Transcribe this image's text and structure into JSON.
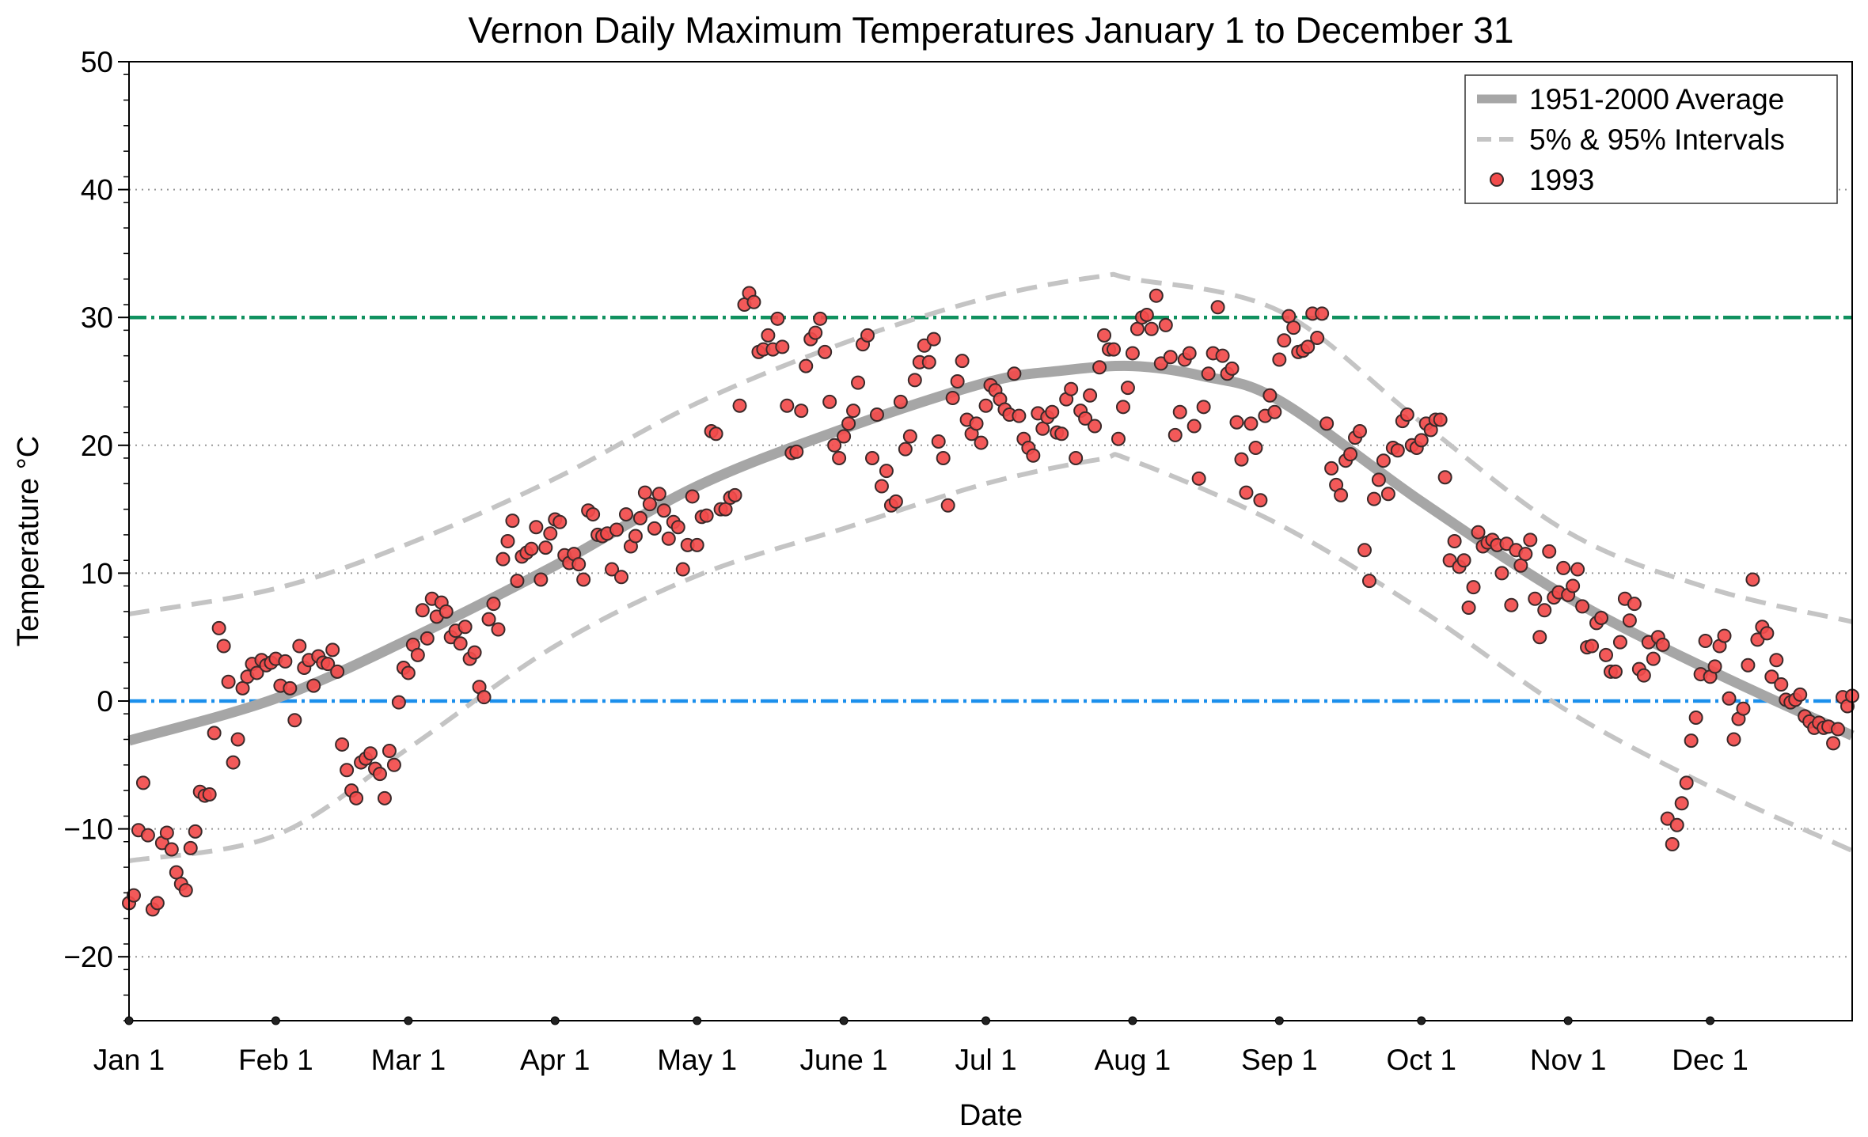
{
  "chart_data": {
    "type": "scatter",
    "title": "Vernon Daily Maximum Temperatures January 1 to December 31",
    "xlabel": "Date",
    "ylabel": "Temperature °C",
    "ylim": [
      -25,
      50
    ],
    "xlim_days": [
      0,
      364
    ],
    "yticks": [
      -20,
      -10,
      0,
      10,
      20,
      30,
      40,
      50
    ],
    "yticklabels": [
      "−20",
      "−10",
      "0",
      "10",
      "20",
      "30",
      "40",
      "50"
    ],
    "xticks": [
      {
        "day": 0,
        "label": "Jan 1"
      },
      {
        "day": 31,
        "label": "Feb 1"
      },
      {
        "day": 59,
        "label": "Mar 1"
      },
      {
        "day": 90,
        "label": "Apr 1"
      },
      {
        "day": 120,
        "label": "May 1"
      },
      {
        "day": 151,
        "label": "June 1"
      },
      {
        "day": 181,
        "label": "Jul 1"
      },
      {
        "day": 212,
        "label": "Aug 1"
      },
      {
        "day": 243,
        "label": "Sep 1"
      },
      {
        "day": 273,
        "label": "Oct 1"
      },
      {
        "day": 304,
        "label": "Nov 1"
      },
      {
        "day": 334,
        "label": "Dec 1"
      }
    ],
    "grid": "horizontal dotted",
    "legend_position": "top-right",
    "legend": [
      "1951-2000 Average",
      "5% & 95% Intervals",
      "1993"
    ],
    "reference_lines": [
      {
        "value": 30,
        "color": "#10915f"
      },
      {
        "value": 0,
        "color": "#1b8fec"
      }
    ],
    "colors": {
      "average": "#a6a6a6",
      "intervals": "#c4c4c4",
      "points": "#f24b4b",
      "point_edge": "#3a2a2a"
    },
    "average": {
      "days": [
        0,
        31,
        59,
        90,
        120,
        151,
        181,
        196,
        212,
        227,
        243,
        273,
        304,
        334,
        364
      ],
      "values": [
        -3.1,
        0.2,
        4.8,
        10.6,
        16.8,
        21.3,
        24.9,
        25.8,
        26.2,
        25.4,
        23.5,
        15.6,
        8.1,
        2.4,
        -2.7
      ]
    },
    "p95": {
      "days": [
        0,
        31,
        59,
        90,
        120,
        151,
        181,
        205,
        212,
        243,
        273,
        304,
        334,
        364
      ],
      "values": [
        6.8,
        8.8,
        12.3,
        17.4,
        23.3,
        28.0,
        31.5,
        33.2,
        33.0,
        30.5,
        21.8,
        13.2,
        8.8,
        6.2
      ]
    },
    "p5": {
      "days": [
        0,
        31,
        59,
        90,
        120,
        151,
        181,
        205,
        212,
        243,
        273,
        304,
        334,
        364
      ],
      "values": [
        -12.5,
        -10.5,
        -3.7,
        4.3,
        9.8,
        13.5,
        17.0,
        18.9,
        18.8,
        13.8,
        7.1,
        -0.8,
        -6.7,
        -11.7
      ]
    },
    "series_1993": [
      -15.8,
      -15.2,
      -10.1,
      -6.4,
      -10.5,
      -16.3,
      -15.8,
      -11.1,
      -10.3,
      -11.6,
      -13.4,
      -14.3,
      -14.8,
      -11.5,
      -10.2,
      -7.1,
      -7.4,
      -7.3,
      -2.5,
      5.7,
      4.3,
      1.5,
      -4.8,
      -3.0,
      1.0,
      1.9,
      2.9,
      2.2,
      3.2,
      2.8,
      3.0,
      3.3,
      1.2,
      3.1,
      1.0,
      -1.5,
      4.3,
      2.6,
      3.2,
      1.2,
      3.5,
      3.0,
      2.9,
      4.0,
      2.3,
      -3.4,
      -5.4,
      -7.0,
      -7.6,
      -4.8,
      -4.5,
      -4.1,
      -5.3,
      -5.7,
      -7.6,
      -3.9,
      -5.0,
      -0.1,
      2.6,
      2.2,
      4.4,
      3.6,
      7.1,
      4.9,
      8.0,
      6.6,
      7.7,
      7.0,
      5.0,
      5.5,
      4.5,
      5.8,
      3.3,
      3.8,
      1.1,
      0.3,
      6.4,
      7.6,
      5.6,
      11.1,
      12.5,
      14.1,
      9.4,
      11.3,
      11.6,
      11.9,
      13.6,
      9.5,
      12.0,
      13.1,
      14.2,
      14.0,
      11.4,
      10.8,
      11.5,
      10.7,
      9.5,
      14.9,
      14.6,
      13.0,
      12.9,
      13.1,
      10.3,
      13.4,
      9.7,
      14.6,
      12.1,
      12.9,
      14.3,
      16.3,
      15.4,
      13.5,
      16.2,
      14.9,
      12.7,
      14.0,
      13.6,
      10.3,
      12.2,
      16.0,
      12.2,
      14.4,
      14.5,
      21.1,
      20.9,
      15.0,
      15.0,
      15.9,
      16.1,
      23.1,
      31.0,
      31.9,
      31.2,
      27.3,
      27.5,
      28.6,
      27.5,
      29.9,
      27.7,
      23.1,
      19.4,
      19.5,
      22.7,
      26.2,
      28.3,
      28.8,
      29.9,
      27.3,
      23.4,
      20.0,
      19.0,
      20.7,
      21.7,
      22.7,
      24.9,
      27.9,
      28.6,
      19.0,
      22.4,
      16.8,
      18.0,
      15.3,
      15.6,
      23.4,
      19.7,
      20.7,
      25.1,
      26.5,
      27.8,
      26.5,
      28.3,
      20.3,
      19.0,
      15.3,
      23.7,
      25.0,
      26.6,
      22.0,
      20.9,
      21.7,
      20.2,
      23.1,
      24.7,
      24.3,
      23.6,
      22.8,
      22.4,
      25.6,
      22.3,
      20.5,
      19.8,
      19.2,
      22.5,
      21.3,
      22.2,
      22.6,
      21.0,
      20.9,
      23.6,
      24.4,
      19.0,
      22.7,
      22.1,
      23.9,
      21.5,
      26.1,
      28.6,
      27.5,
      27.5,
      20.5,
      23.0,
      24.5,
      27.2,
      29.1,
      30.0,
      30.2,
      29.1,
      31.7,
      26.4,
      29.4,
      26.9,
      20.8,
      22.6,
      26.7,
      27.2,
      21.5,
      17.4,
      23.0,
      25.6,
      27.2,
      30.8,
      27.0,
      25.6,
      26.0,
      21.8,
      18.9,
      16.3,
      21.7,
      19.8,
      15.7,
      22.3,
      23.9,
      22.6,
      26.7,
      28.2,
      30.1,
      29.2,
      27.3,
      27.4,
      27.7,
      30.3,
      28.4,
      30.3,
      21.7,
      18.2,
      16.9,
      16.1,
      18.8,
      19.3,
      20.6,
      21.1,
      11.8,
      9.4,
      15.8,
      17.3,
      18.8,
      16.2,
      19.8,
      19.6,
      21.9,
      22.4,
      20.0,
      19.8,
      20.4,
      21.7,
      21.2,
      22.0,
      22.0,
      17.5,
      11.0,
      12.5,
      10.5,
      11.0,
      7.3,
      8.9,
      13.2,
      12.1,
      12.4,
      12.6,
      12.2,
      10.0,
      12.3,
      7.5,
      11.8,
      10.6,
      11.5,
      12.6,
      8.0,
      5.0,
      7.1,
      11.7,
      8.1,
      8.5,
      10.4,
      8.3,
      9.0,
      10.3,
      7.4,
      4.2,
      4.3,
      6.1,
      6.5,
      3.6,
      2.3,
      2.3,
      4.6,
      8.0,
      6.3,
      7.6,
      2.5,
      2.0,
      4.6,
      3.3,
      5.0,
      4.4,
      -9.2,
      -11.2,
      -9.7,
      -8.0,
      -6.4,
      -3.1,
      -1.3,
      2.1,
      4.7,
      1.9,
      2.7,
      4.3,
      5.1,
      0.2,
      -3.0,
      -1.4,
      -0.6,
      2.8,
      9.5,
      4.8,
      5.8,
      5.3,
      1.9,
      3.2,
      1.3,
      0.1,
      -0.1,
      0.1,
      0.5,
      -1.2,
      -1.6,
      -2.1,
      -1.7,
      -2.1,
      -2.0,
      -3.3,
      -2.2,
      0.3,
      -0.4,
      0.4
    ]
  }
}
